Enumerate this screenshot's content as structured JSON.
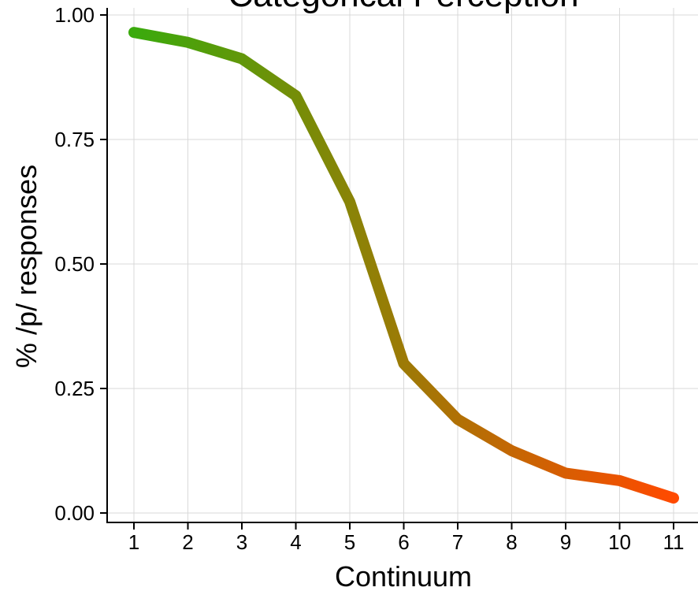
{
  "chart_data": {
    "type": "line",
    "title": "Categorical Perception",
    "xlabel": "Continuum",
    "ylabel": "% /p/ responses",
    "x": [
      1,
      2,
      3,
      4,
      5,
      6,
      7,
      8,
      9,
      10,
      11
    ],
    "x_tick_labels": [
      "1",
      "2",
      "3",
      "4",
      "5",
      "6",
      "7",
      "8",
      "9",
      "10",
      "11"
    ],
    "y_ticks": [
      0.0,
      0.25,
      0.5,
      0.75,
      1.0
    ],
    "y_tick_labels": [
      "0.00",
      "0.25",
      "0.50",
      "0.75",
      "1.00"
    ],
    "xlim": [
      0.5,
      11.5
    ],
    "ylim": [
      0.0,
      1.0
    ],
    "grid": true,
    "series": [
      {
        "values": [
          0.965,
          0.945,
          0.912,
          0.838,
          0.625,
          0.3,
          0.188,
          0.125,
          0.08,
          0.065,
          0.03
        ],
        "color_start": "#3aaa0c",
        "color_end": "#ff4a00"
      }
    ]
  }
}
